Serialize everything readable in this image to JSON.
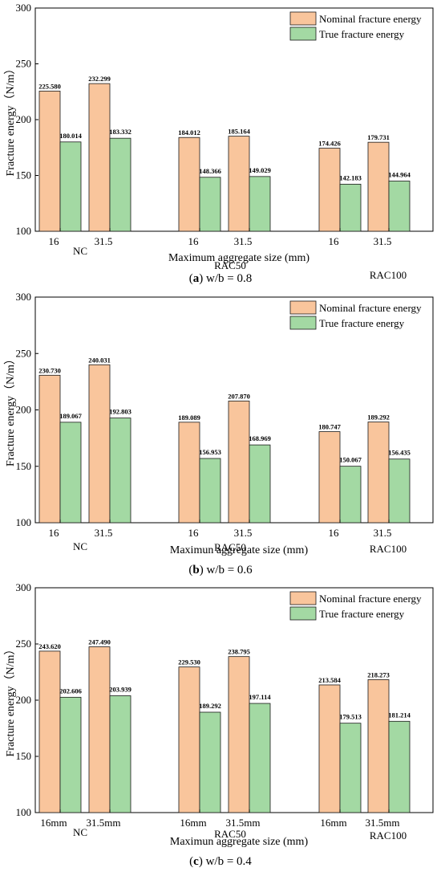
{
  "legend": {
    "nominal": "Nominal fracture energy",
    "true": "True fracture energy"
  },
  "colors": {
    "nominal": "#f9c59c",
    "true": "#a3d9a3",
    "stroke": "#1a1a1a"
  },
  "chart_data": [
    {
      "type": "bar",
      "caption_letter": "a",
      "caption_text": " w/b = 0.8",
      "ylabel": "Fracture energy（N/m）",
      "xlabel": "Maximum aggregate size (mm)",
      "ylim": [
        100,
        300
      ],
      "yticks": [
        100,
        150,
        200,
        250,
        300
      ],
      "legend_position": "top-right",
      "groups": [
        "NC",
        "RAC50",
        "RAC100"
      ],
      "categories": [
        "16",
        "31.5",
        "16",
        "31.5",
        "16",
        "31.5"
      ],
      "series": [
        {
          "name": "Nominal fracture energy",
          "values": [
            225.58,
            232.299,
            184.012,
            185.164,
            174.426,
            179.731
          ],
          "labels": [
            "225.580",
            "232.299",
            "184.012",
            "185.164",
            "174.426",
            "179.731"
          ]
        },
        {
          "name": "True fracture energy",
          "values": [
            180.014,
            183.332,
            148.366,
            149.029,
            142.183,
            144.964
          ],
          "labels": [
            "180.014",
            "183.332",
            "148.366",
            "149.029",
            "142.183",
            "144.964"
          ]
        }
      ]
    },
    {
      "type": "bar",
      "caption_letter": "b",
      "caption_text": " w/b = 0.6",
      "ylabel": "Fracture energy（N/m）",
      "xlabel": "Maximun aggregate size (mm)",
      "ylim": [
        100,
        300
      ],
      "yticks": [
        100,
        150,
        200,
        250,
        300
      ],
      "legend_position": "top-right",
      "groups": [
        "NC",
        "RAC50",
        "RAC100"
      ],
      "categories": [
        "16",
        "31.5",
        "16",
        "31.5",
        "16",
        "31.5"
      ],
      "series": [
        {
          "name": "Nominal fracture energy",
          "values": [
            230.73,
            240.031,
            189.089,
            207.87,
            180.747,
            189.292
          ],
          "labels": [
            "230.730",
            "240.031",
            "189.089",
            "207.870",
            "180.747",
            "189.292"
          ]
        },
        {
          "name": "True fracture energy",
          "values": [
            189.067,
            192.803,
            156.953,
            168.969,
            150.067,
            156.435
          ],
          "labels": [
            "189.067",
            "192.803",
            "156.953",
            "168.969",
            "150.067",
            "156.435"
          ]
        }
      ]
    },
    {
      "type": "bar",
      "caption_letter": "c",
      "caption_text": " w/b = 0.4",
      "ylabel": "Fracture energy（N/m）",
      "xlabel": "Maximun aggregate size (mm)",
      "ylim": [
        100,
        300
      ],
      "yticks": [
        100,
        150,
        200,
        250,
        300
      ],
      "legend_position": "top-right",
      "groups": [
        "NC",
        "RAC50",
        "RAC100"
      ],
      "categories": [
        "16mm",
        "31.5mm",
        "16mm",
        "31.5mm",
        "16mm",
        "31.5mm"
      ],
      "series": [
        {
          "name": "Nominal fracture energy",
          "values": [
            243.62,
            247.49,
            229.53,
            238.795,
            213.584,
            218.273
          ],
          "labels": [
            "243.620",
            "247.490",
            "229.530",
            "238.795",
            "213.584",
            "218.273"
          ]
        },
        {
          "name": "True fracture energy",
          "values": [
            202.606,
            203.939,
            189.292,
            197.114,
            179.513,
            181.214
          ],
          "labels": [
            "202.606",
            "203.939",
            "189.292",
            "197.114",
            "179.513",
            "181.214"
          ]
        }
      ]
    }
  ]
}
